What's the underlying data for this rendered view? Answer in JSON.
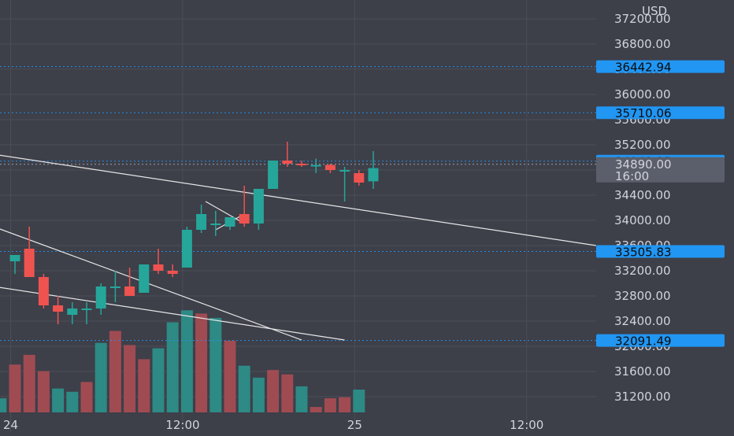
{
  "colors": {
    "background": "#3d3f49",
    "grid": "#4a4c57",
    "up": "#26a69a",
    "down": "#ef5350",
    "volume_up": "#2d8a85",
    "volume_down": "#a04b52",
    "tag": "#2196f3",
    "price_tag": "#5b5f6b",
    "text": "#d1d4dc"
  },
  "chart_data": {
    "type": "candlestick",
    "currency_label": "USD",
    "y_ticks": [
      "31200.00",
      "31600.00",
      "32000.00",
      "32400.00",
      "32800.00",
      "33200.00",
      "33600.00",
      "34000.00",
      "34400.00",
      "34800.00",
      "35200.00",
      "35600.00",
      "36000.00",
      "36400.00",
      "36800.00",
      "37200.00"
    ],
    "x_ticks": [
      {
        "label": "24",
        "bar": -0.3
      },
      {
        "label": "12:00",
        "bar": 11.7
      },
      {
        "label": "25",
        "bar": 23.7
      },
      {
        "label": "12:00",
        "bar": 35.7
      }
    ],
    "ylim": [
      31050,
      37400
    ],
    "candles": [
      {
        "bar": 0,
        "open": 33350,
        "high": 33450,
        "low": 33150,
        "close": 33450
      },
      {
        "bar": 1,
        "open": 33550,
        "high": 33900,
        "low": 33100,
        "close": 33100
      },
      {
        "bar": 2,
        "open": 33100,
        "high": 33150,
        "low": 32600,
        "close": 32650
      },
      {
        "bar": 3,
        "open": 32650,
        "high": 32800,
        "low": 32350,
        "close": 32550
      },
      {
        "bar": 4,
        "open": 32500,
        "high": 32700,
        "low": 32350,
        "close": 32600
      },
      {
        "bar": 5,
        "open": 32600,
        "high": 32700,
        "low": 32350,
        "close": 32600
      },
      {
        "bar": 6,
        "open": 32600,
        "high": 33000,
        "low": 32500,
        "close": 32950
      },
      {
        "bar": 7,
        "open": 32950,
        "high": 33200,
        "low": 32700,
        "close": 32950
      },
      {
        "bar": 8,
        "open": 32950,
        "high": 33250,
        "low": 32800,
        "close": 32800
      },
      {
        "bar": 9,
        "open": 32850,
        "high": 33300,
        "low": 32850,
        "close": 33300
      },
      {
        "bar": 10,
        "open": 33300,
        "high": 33550,
        "low": 33150,
        "close": 33200
      },
      {
        "bar": 11,
        "open": 33200,
        "high": 33300,
        "low": 33100,
        "close": 33150
      },
      {
        "bar": 12,
        "open": 33250,
        "high": 33900,
        "low": 33250,
        "close": 33850
      },
      {
        "bar": 13,
        "open": 33850,
        "high": 34250,
        "low": 33800,
        "close": 34100
      },
      {
        "bar": 14,
        "open": 33950,
        "high": 34150,
        "low": 33750,
        "close": 33950
      },
      {
        "bar": 15,
        "open": 33900,
        "high": 34050,
        "low": 33850,
        "close": 34050
      },
      {
        "bar": 16,
        "open": 34100,
        "high": 34550,
        "low": 33900,
        "close": 33950
      },
      {
        "bar": 17,
        "open": 33950,
        "high": 34500,
        "low": 33850,
        "close": 34500
      },
      {
        "bar": 18,
        "open": 34500,
        "high": 34950,
        "low": 34500,
        "close": 34950
      },
      {
        "bar": 19,
        "open": 34950,
        "high": 35250,
        "low": 34850,
        "close": 34900
      },
      {
        "bar": 20,
        "open": 34900,
        "high": 34950,
        "low": 34850,
        "close": 34880
      },
      {
        "bar": 21,
        "open": 34880,
        "high": 34980,
        "low": 34750,
        "close": 34880
      },
      {
        "bar": 22,
        "open": 34880,
        "high": 34900,
        "low": 34750,
        "close": 34800
      },
      {
        "bar": 23,
        "open": 34800,
        "high": 34850,
        "low": 34300,
        "close": 34800
      },
      {
        "bar": 24,
        "open": 34750,
        "high": 34800,
        "low": 34550,
        "close": 34600
      },
      {
        "bar": 25,
        "open": 34620,
        "high": 35100,
        "low": 34500,
        "close": 34830
      }
    ],
    "volume": [
      {
        "bar": -1,
        "value": 0.13,
        "dir": "up"
      },
      {
        "bar": 0,
        "value": 0.44,
        "dir": "down"
      },
      {
        "bar": 1,
        "value": 0.53,
        "dir": "down"
      },
      {
        "bar": 2,
        "value": 0.38,
        "dir": "down"
      },
      {
        "bar": 3,
        "value": 0.22,
        "dir": "up"
      },
      {
        "bar": 4,
        "value": 0.19,
        "dir": "up"
      },
      {
        "bar": 5,
        "value": 0.28,
        "dir": "down"
      },
      {
        "bar": 6,
        "value": 0.64,
        "dir": "up"
      },
      {
        "bar": 7,
        "value": 0.75,
        "dir": "down"
      },
      {
        "bar": 8,
        "value": 0.62,
        "dir": "down"
      },
      {
        "bar": 9,
        "value": 0.49,
        "dir": "down"
      },
      {
        "bar": 10,
        "value": 0.59,
        "dir": "up"
      },
      {
        "bar": 11,
        "value": 0.83,
        "dir": "up"
      },
      {
        "bar": 12,
        "value": 0.94,
        "dir": "up"
      },
      {
        "bar": 13,
        "value": 0.91,
        "dir": "down"
      },
      {
        "bar": 14,
        "value": 0.87,
        "dir": "up"
      },
      {
        "bar": 15,
        "value": 0.66,
        "dir": "down"
      },
      {
        "bar": 16,
        "value": 0.43,
        "dir": "up"
      },
      {
        "bar": 17,
        "value": 0.32,
        "dir": "up"
      },
      {
        "bar": 18,
        "value": 0.39,
        "dir": "down"
      },
      {
        "bar": 19,
        "value": 0.35,
        "dir": "down"
      },
      {
        "bar": 20,
        "value": 0.24,
        "dir": "up"
      },
      {
        "bar": 21,
        "value": 0.05,
        "dir": "down"
      },
      {
        "bar": 22,
        "value": 0.13,
        "dir": "down"
      },
      {
        "bar": 23,
        "value": 0.14,
        "dir": "down"
      },
      {
        "bar": 24,
        "value": 0.21,
        "dir": "up"
      }
    ],
    "horizontal_levels": [
      {
        "price": "36442.94",
        "value": 36442.94
      },
      {
        "price": "35710.06",
        "value": 35710.06
      },
      {
        "price": "34941.35",
        "value": 34941.35
      },
      {
        "price": "33505.83",
        "value": 33505.83
      },
      {
        "price": "32091.49",
        "value": 32091.49
      }
    ],
    "current_price": {
      "price": "34890.00",
      "countdown": "16:00",
      "value": 34890.0
    },
    "trendlines": [
      {
        "from": {
          "bar": -1.5,
          "price": 35050
        },
        "to": {
          "bar": 42,
          "price": 33600
        }
      },
      {
        "from": {
          "bar": -1.5,
          "price": 33900
        },
        "to": {
          "bar": 20,
          "price": 32100
        }
      },
      {
        "from": {
          "bar": -1.5,
          "price": 32950
        },
        "to": {
          "bar": 23,
          "price": 32100
        }
      },
      {
        "from": {
          "bar": 13.3,
          "price": 34300
        },
        "to": {
          "bar": 16,
          "price": 33950
        }
      },
      {
        "from": {
          "bar": 14,
          "price": 33850
        },
        "to": {
          "bar": 16,
          "price": 34100
        }
      }
    ]
  }
}
